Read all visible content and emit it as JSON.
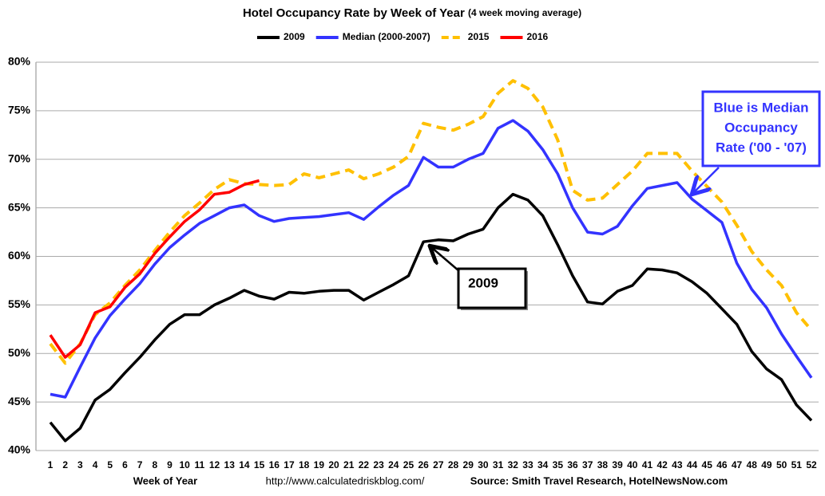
{
  "chart_data": {
    "type": "line",
    "title": "Hotel Occupancy Rate by  Week of Year",
    "subtitle": "(4 week moving average)",
    "x_label": "Week of Year",
    "url": "http://www.calculatedriskblog.com/",
    "source": "Source: Smith Travel Research, HotelNewsNow.com",
    "categories": [
      "1",
      "2",
      "3",
      "4",
      "5",
      "6",
      "7",
      "8",
      "9",
      "10",
      "11",
      "12",
      "13",
      "14",
      "15",
      "16",
      "17",
      "18",
      "19",
      "20",
      "21",
      "22",
      "23",
      "24",
      "25",
      "26",
      "27",
      "28",
      "29",
      "30",
      "31",
      "32",
      "33",
      "34",
      "35",
      "36",
      "37",
      "38",
      "39",
      "40",
      "41",
      "42",
      "43",
      "44",
      "45",
      "46",
      "47",
      "48",
      "49",
      "50",
      "51",
      "52"
    ],
    "ylim": [
      40,
      80
    ],
    "yticks": [
      {
        "value": 40,
        "label": "40%"
      },
      {
        "value": 45,
        "label": "45%"
      },
      {
        "value": 50,
        "label": "50%"
      },
      {
        "value": 55,
        "label": "55%"
      },
      {
        "value": 60,
        "label": "60%"
      },
      {
        "value": 65,
        "label": "65%"
      },
      {
        "value": 70,
        "label": "70%"
      },
      {
        "value": 75,
        "label": "75%"
      },
      {
        "value": 80,
        "label": "80%"
      }
    ],
    "grid": true,
    "legend": "top",
    "series": [
      {
        "name": "2009",
        "color": "#000000",
        "dashed": false,
        "values": [
          42.9,
          41.0,
          42.3,
          45.2,
          46.3,
          48.0,
          49.6,
          51.4,
          53.0,
          54.0,
          54.0,
          55.0,
          55.7,
          56.5,
          55.9,
          55.6,
          56.3,
          56.2,
          56.4,
          56.5,
          56.5,
          55.5,
          56.3,
          57.1,
          58.0,
          61.5,
          61.7,
          61.6,
          62.3,
          62.8,
          65.0,
          66.4,
          65.8,
          64.2,
          61.2,
          58.0,
          55.3,
          55.1,
          56.4,
          57.0,
          58.7,
          58.6,
          58.3,
          57.4,
          56.2,
          54.6,
          53.0,
          50.2,
          48.4,
          47.3,
          44.7,
          43.1
        ]
      },
      {
        "name": "Median (2000-2007)",
        "color": "#3333ff",
        "dashed": false,
        "values": [
          45.8,
          45.5,
          48.6,
          51.6,
          53.9,
          55.6,
          57.2,
          59.2,
          60.9,
          62.2,
          63.4,
          64.2,
          65.0,
          65.3,
          64.2,
          63.6,
          63.9,
          64.0,
          64.1,
          64.3,
          64.5,
          63.8,
          65.1,
          66.3,
          67.3,
          70.2,
          69.2,
          69.2,
          70.0,
          70.6,
          73.2,
          74.0,
          72.9,
          71.0,
          68.5,
          65.0,
          62.5,
          62.3,
          63.1,
          65.2,
          67.0,
          67.3,
          67.6,
          65.9,
          64.7,
          63.5,
          59.3,
          56.6,
          54.7,
          52.0,
          49.7,
          47.5
        ]
      },
      {
        "name": "2015",
        "color": "#ffc000",
        "dashed": true,
        "values": [
          51.0,
          49.0,
          51.0,
          54.0,
          55.2,
          57.0,
          58.6,
          60.6,
          62.5,
          64.2,
          65.5,
          66.9,
          67.9,
          67.5,
          67.4,
          67.3,
          67.4,
          68.5,
          68.1,
          68.5,
          68.9,
          68.0,
          68.5,
          69.2,
          70.3,
          73.7,
          73.3,
          73.0,
          73.6,
          74.4,
          76.8,
          78.1,
          77.3,
          75.4,
          72.0,
          66.8,
          65.8,
          66.0,
          67.4,
          68.8,
          70.6,
          70.6,
          70.6,
          68.8,
          67.2,
          65.6,
          63.2,
          60.5,
          58.6,
          57.0,
          54.2,
          52.4
        ]
      },
      {
        "name": "2016",
        "color": "#ff0000",
        "dashed": false,
        "values": [
          51.9,
          49.6,
          50.9,
          54.2,
          54.8,
          56.8,
          58.2,
          60.3,
          62.0,
          63.6,
          64.8,
          66.4,
          66.6,
          67.4,
          67.8,
          null,
          null,
          null,
          null,
          null,
          null,
          null,
          null,
          null,
          null,
          null,
          null,
          null,
          null,
          null,
          null,
          null,
          null,
          null,
          null,
          null,
          null,
          null,
          null,
          null,
          null,
          null,
          null,
          null,
          null,
          null,
          null,
          null,
          null,
          null,
          null,
          null
        ]
      }
    ],
    "annotations": [
      {
        "lines": [
          "Blue is Median",
          "Occupancy",
          "Rate ('00 - '07)"
        ]
      },
      {
        "lines": [
          "2009"
        ]
      }
    ]
  }
}
